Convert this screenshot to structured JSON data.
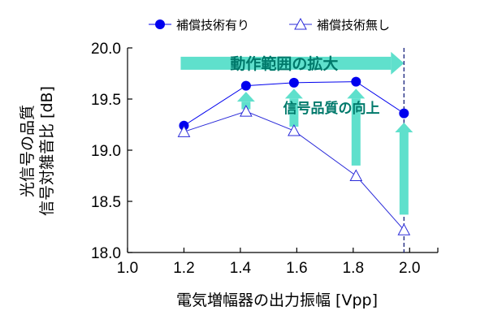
{
  "chart_data": {
    "type": "line",
    "title": "",
    "xlabel": "電気増幅器の出力振幅 [Vpp]",
    "ylabel_lines": [
      "光信号の品質",
      "信号対雑音比 [dB]"
    ],
    "xlim": [
      1.0,
      2.1
    ],
    "ylim": [
      18.0,
      20.0
    ],
    "x_ticks": [
      "1.0",
      "1.2",
      "1.4",
      "1.6",
      "1.8",
      "2.0"
    ],
    "y_ticks": [
      "18.0",
      "18.5",
      "19.0",
      "19.5",
      "20.0"
    ],
    "grid": false,
    "legend_position": "top",
    "series": [
      {
        "name": "補償技術有り",
        "marker": "filled-circle",
        "color": "#0000ee",
        "x": [
          1.2,
          1.42,
          1.59,
          1.81,
          1.98
        ],
        "y": [
          19.24,
          19.63,
          19.66,
          19.67,
          19.36
        ]
      },
      {
        "name": "補償技術無し",
        "marker": "open-triangle",
        "color": "#2b2bd9",
        "x": [
          1.2,
          1.42,
          1.59,
          1.81,
          1.98
        ],
        "y": [
          19.18,
          19.38,
          19.19,
          18.75,
          18.22
        ]
      }
    ],
    "reference_line": {
      "x": 1.98,
      "style": "dashed",
      "color": "#1a237e"
    },
    "annotations": {
      "range_arrow_label": "動作範囲の拡大",
      "range_arrow": {
        "from_x": 1.2,
        "to_x": 1.98,
        "y": 19.85
      },
      "quality_label": "信号品質の向上",
      "quality_arrows": [
        {
          "x": 1.42,
          "from_y": 19.4,
          "to_y": 19.57
        },
        {
          "x": 1.59,
          "from_y": 19.23,
          "to_y": 19.6
        },
        {
          "x": 1.81,
          "from_y": 18.85,
          "to_y": 19.6
        },
        {
          "x": 1.98,
          "from_y": 18.37,
          "to_y": 19.27
        }
      ],
      "color": "#5fe0cc"
    }
  }
}
